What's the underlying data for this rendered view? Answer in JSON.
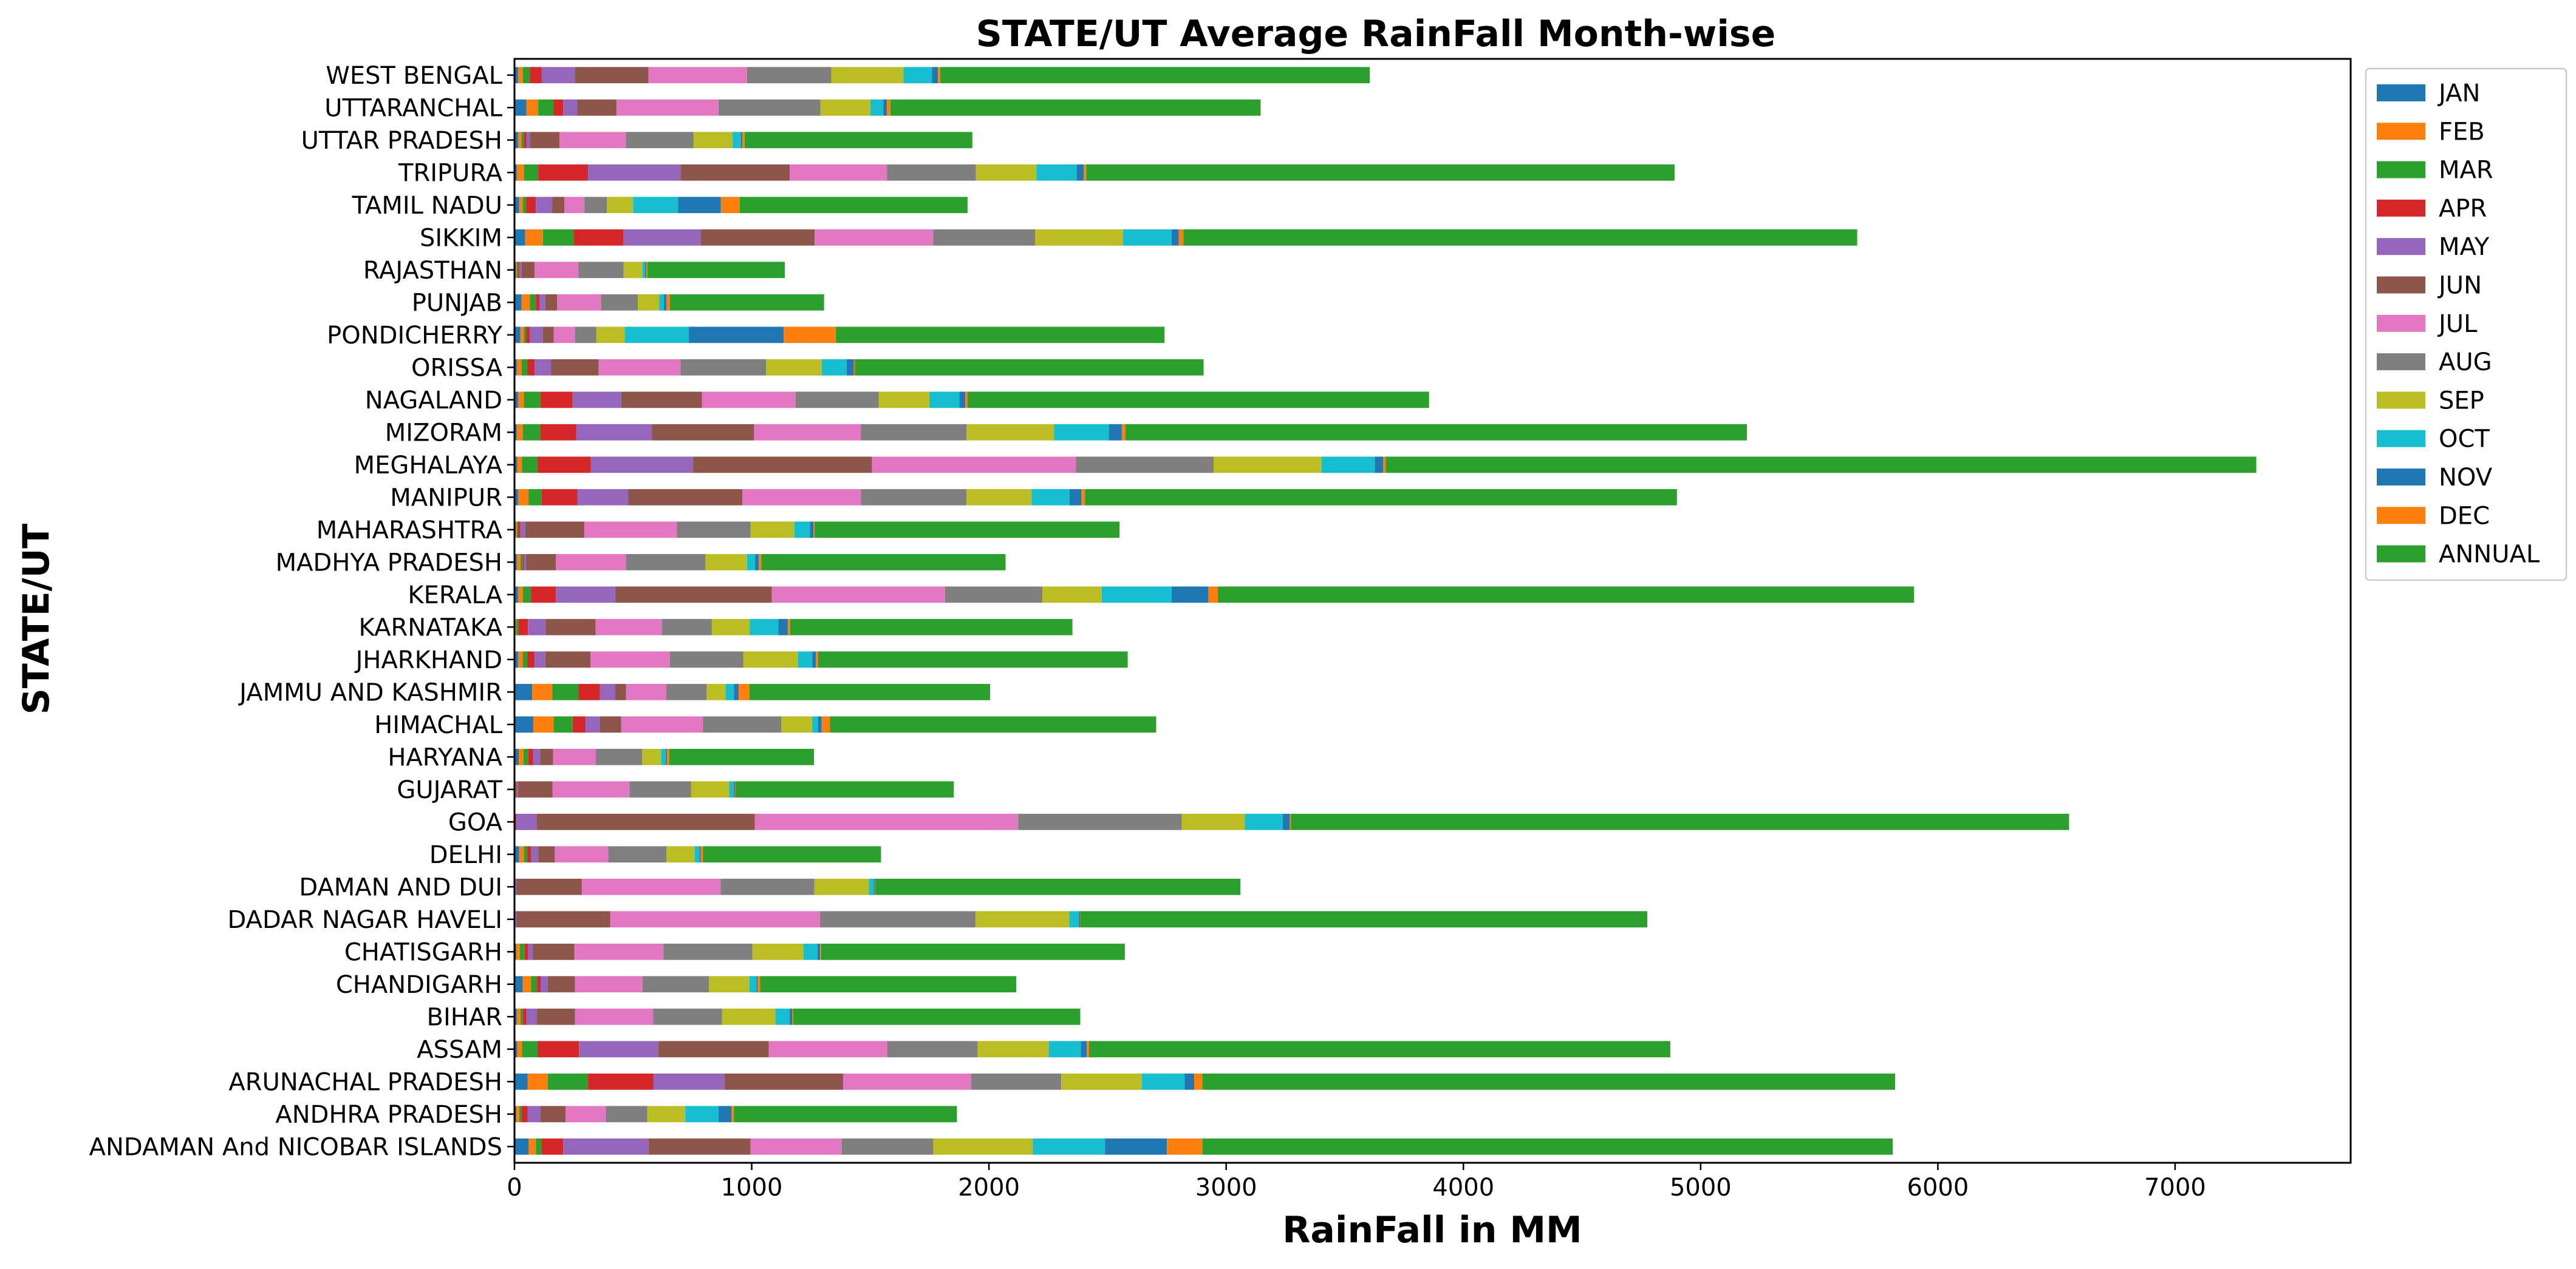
{
  "chart_data": {
    "type": "bar",
    "orientation": "horizontal",
    "stacked": true,
    "title": "STATE/UT Average RainFall Month-wise",
    "xlabel": "RainFall in MM",
    "ylabel": "STATE/UT",
    "xlim": [
      0,
      7740
    ],
    "xticks": [
      0,
      1000,
      2000,
      3000,
      4000,
      5000,
      6000,
      7000
    ],
    "grid": false,
    "legend_position": "top-right",
    "categories": [
      "ANDAMAN And NICOBAR ISLANDS",
      "ANDHRA PRADESH",
      "ARUNACHAL PRADESH",
      "ASSAM",
      "BIHAR",
      "CHANDIGARH",
      "CHATISGARH",
      "DADAR NAGAR HAVELI",
      "DAMAN AND DUI",
      "DELHI",
      "GOA",
      "GUJARAT",
      "HARYANA",
      "HIMACHAL",
      "JAMMU AND KASHMIR",
      "JHARKHAND",
      "KARNATAKA",
      "KERALA",
      "MADHYA PRADESH",
      "MAHARASHTRA",
      "MANIPUR",
      "MEGHALAYA",
      "MIZORAM",
      "NAGALAND",
      "ORISSA",
      "PONDICHERRY",
      "PUNJAB",
      "RAJASTHAN",
      "SIKKIM",
      "TAMIL NADU",
      "TRIPURA",
      "UTTAR PRADESH",
      "UTTARANCHAL",
      "WEST BENGAL"
    ],
    "series": [
      {
        "name": "JAN",
        "color": "#1f77b4",
        "values": [
          60,
          8,
          55,
          12,
          10,
          35,
          8,
          1,
          1,
          20,
          1,
          2,
          18,
          80,
          75,
          15,
          2,
          15,
          10,
          5,
          15,
          12,
          10,
          15,
          10,
          25,
          30,
          5,
          45,
          20,
          10,
          15,
          50,
          15
        ]
      },
      {
        "name": "FEB",
        "color": "#ff7f0e",
        "values": [
          30,
          12,
          85,
          20,
          15,
          35,
          15,
          1,
          1,
          20,
          1,
          2,
          20,
          85,
          85,
          20,
          5,
          20,
          15,
          5,
          45,
          20,
          25,
          25,
          20,
          15,
          35,
          5,
          75,
          15,
          30,
          15,
          50,
          20
        ]
      },
      {
        "name": "MAR",
        "color": "#2ca02c",
        "values": [
          25,
          10,
          170,
          65,
          10,
          25,
          20,
          1,
          1,
          15,
          1,
          3,
          20,
          80,
          110,
          20,
          10,
          35,
          10,
          5,
          55,
          65,
          75,
          70,
          25,
          10,
          25,
          5,
          130,
          15,
          60,
          10,
          65,
          30
        ]
      },
      {
        "name": "APR",
        "color": "#d62728",
        "values": [
          90,
          25,
          275,
          175,
          15,
          15,
          15,
          1,
          1,
          15,
          5,
          3,
          20,
          55,
          90,
          30,
          40,
          105,
          5,
          10,
          150,
          225,
          150,
          135,
          30,
          15,
          15,
          5,
          210,
          40,
          210,
          10,
          40,
          50
        ]
      },
      {
        "name": "MAY",
        "color": "#9467bd",
        "values": [
          360,
          55,
          300,
          335,
          45,
          30,
          20,
          5,
          5,
          30,
          85,
          5,
          30,
          60,
          65,
          45,
          75,
          250,
          10,
          20,
          215,
          430,
          320,
          205,
          70,
          55,
          25,
          10,
          325,
          70,
          390,
          15,
          60,
          140
        ]
      },
      {
        "name": "JUN",
        "color": "#8c564b",
        "values": [
          430,
          105,
          500,
          465,
          160,
          115,
          175,
          395,
          275,
          70,
          920,
          145,
          55,
          90,
          45,
          190,
          210,
          660,
          125,
          250,
          480,
          755,
          430,
          340,
          200,
          45,
          50,
          55,
          480,
          50,
          460,
          125,
          165,
          310
        ]
      },
      {
        "name": "JUL",
        "color": "#e377c2",
        "values": [
          385,
          170,
          540,
          500,
          330,
          285,
          375,
          885,
          585,
          225,
          1110,
          325,
          180,
          345,
          170,
          335,
          280,
          730,
          295,
          390,
          500,
          860,
          450,
          395,
          345,
          90,
          185,
          185,
          500,
          85,
          410,
          280,
          430,
          415
        ]
      },
      {
        "name": "AUG",
        "color": "#7f7f7f",
        "values": [
          385,
          175,
          380,
          380,
          290,
          280,
          375,
          655,
          395,
          245,
          690,
          260,
          195,
          330,
          170,
          310,
          210,
          410,
          335,
          310,
          445,
          580,
          445,
          350,
          360,
          90,
          155,
          190,
          430,
          95,
          375,
          285,
          430,
          355
        ]
      },
      {
        "name": "SEP",
        "color": "#bcbd22",
        "values": [
          420,
          160,
          340,
          300,
          225,
          170,
          215,
          395,
          230,
          120,
          265,
          160,
          80,
          130,
          80,
          230,
          160,
          250,
          175,
          185,
          275,
          455,
          370,
          215,
          235,
          120,
          90,
          80,
          370,
          110,
          255,
          165,
          210,
          305
        ]
      },
      {
        "name": "OCT",
        "color": "#17becf",
        "values": [
          305,
          140,
          180,
          135,
          60,
          30,
          60,
          40,
          20,
          20,
          160,
          20,
          20,
          25,
          35,
          60,
          120,
          295,
          35,
          65,
          160,
          225,
          230,
          125,
          105,
          270,
          20,
          10,
          205,
          190,
          170,
          35,
          55,
          120
        ]
      },
      {
        "name": "NOV",
        "color": "#1f77b4",
        "values": [
          260,
          55,
          40,
          25,
          10,
          5,
          10,
          5,
          5,
          5,
          30,
          5,
          5,
          15,
          20,
          15,
          40,
          155,
          15,
          15,
          50,
          35,
          55,
          25,
          30,
          400,
          10,
          5,
          30,
          180,
          30,
          5,
          15,
          25
        ]
      },
      {
        "name": "DEC",
        "color": "#ff7f0e",
        "values": [
          150,
          10,
          35,
          10,
          5,
          10,
          5,
          1,
          1,
          10,
          5,
          2,
          10,
          35,
          45,
          10,
          10,
          40,
          10,
          5,
          15,
          10,
          15,
          10,
          5,
          220,
          15,
          5,
          20,
          80,
          10,
          10,
          15,
          10
        ]
      },
      {
        "name": "ANNUAL",
        "color": "#2ca02c",
        "values": [
          2910,
          940,
          2920,
          2450,
          1210,
          1080,
          1280,
          2390,
          1540,
          750,
          3280,
          920,
          610,
          1375,
          1015,
          1305,
          1190,
          2935,
          1030,
          1285,
          2495,
          3670,
          2620,
          1945,
          1470,
          1385,
          650,
          580,
          2840,
          960,
          2480,
          960,
          1560,
          1810
        ]
      }
    ]
  }
}
